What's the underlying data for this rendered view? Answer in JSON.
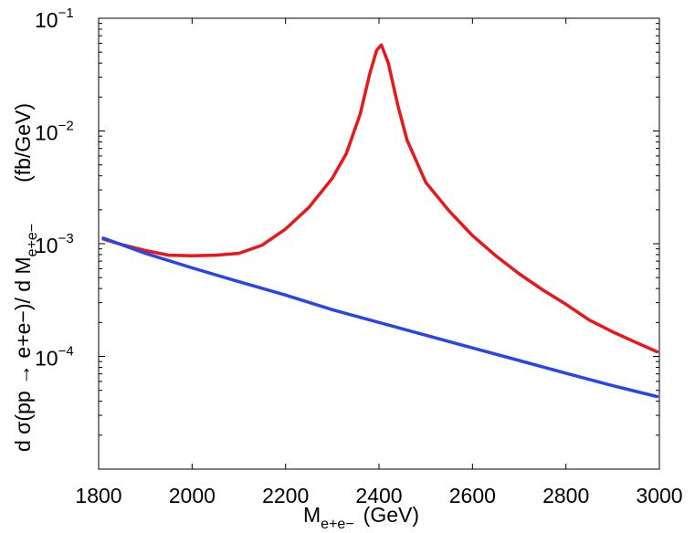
{
  "chart_data": {
    "type": "line",
    "xlabel": {
      "main": "M",
      "sub": "e+e−",
      "units": "(GeV)"
    },
    "ylabel": {
      "prefix": "d σ(pp → e+e−)/ d M",
      "sub": "e+e−",
      "units": "(fb/GeV)"
    },
    "xlim": [
      1800,
      3000
    ],
    "ylim": [
      1e-05,
      0.1
    ],
    "yscale": "log",
    "grid": false,
    "x_ticks": [
      1800,
      2000,
      2200,
      2400,
      2600,
      2800,
      3000
    ],
    "x_tick_labels": [
      "1800",
      "2000",
      "2200",
      "2400",
      "2600",
      "2800",
      "3000"
    ],
    "y_ticks": [
      {
        "value": 0.1,
        "base": "10",
        "exp": "−1"
      },
      {
        "value": 0.01,
        "base": "10",
        "exp": "−2"
      },
      {
        "value": 0.001,
        "base": "10",
        "exp": "−3"
      },
      {
        "value": 0.0001,
        "base": "10",
        "exp": "−4"
      }
    ],
    "series": [
      {
        "color": "#e8171a",
        "x": [
          1810,
          1850,
          1900,
          1950,
          2000,
          2050,
          2100,
          2150,
          2200,
          2250,
          2300,
          2330,
          2360,
          2380,
          2395,
          2405,
          2420,
          2440,
          2460,
          2500,
          2550,
          2600,
          2650,
          2700,
          2750,
          2800,
          2850,
          2900,
          2950,
          2995
        ],
        "y": [
          0.0011,
          0.00098,
          0.00087,
          0.00079,
          0.00078,
          0.00079,
          0.00082,
          0.00097,
          0.00135,
          0.0021,
          0.0038,
          0.0063,
          0.0142,
          0.032,
          0.052,
          0.058,
          0.04,
          0.017,
          0.0083,
          0.0035,
          0.00195,
          0.00118,
          0.00078,
          0.00054,
          0.00039,
          0.00029,
          0.00021,
          0.000165,
          0.000133,
          0.00011
        ]
      },
      {
        "color": "#2a44e8",
        "x": [
          1810,
          1900,
          2000,
          2100,
          2200,
          2300,
          2400,
          2500,
          2600,
          2700,
          2800,
          2900,
          2995
        ],
        "y": [
          0.00112,
          0.00082,
          0.00061,
          0.00046,
          0.00035,
          0.00026,
          0.0002,
          0.000154,
          0.000119,
          9.2e-05,
          7.1e-05,
          5.5e-05,
          4.4e-05
        ]
      }
    ]
  }
}
